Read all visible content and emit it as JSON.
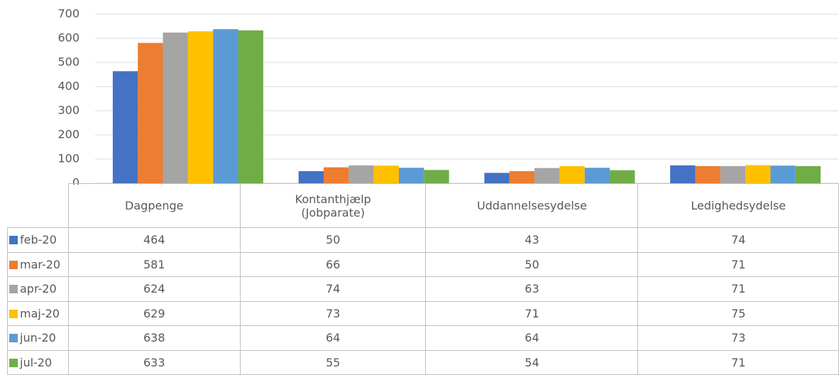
{
  "chart_data": {
    "type": "bar",
    "categories": [
      "Dagpenge",
      "Kontanthjælp (Jobparate)",
      "Uddannelsesydelse",
      "Ledighedsydelse"
    ],
    "series": [
      {
        "name": "feb-20",
        "color": "#4472c4",
        "values": [
          464,
          50,
          43,
          74
        ]
      },
      {
        "name": "mar-20",
        "color": "#ed7d31",
        "values": [
          581,
          66,
          50,
          71
        ]
      },
      {
        "name": "apr-20",
        "color": "#a5a5a5",
        "values": [
          624,
          74,
          63,
          71
        ]
      },
      {
        "name": "maj-20",
        "color": "#ffc000",
        "values": [
          629,
          73,
          71,
          75
        ]
      },
      {
        "name": "jun-20",
        "color": "#5b9bd5",
        "values": [
          638,
          64,
          64,
          73
        ]
      },
      {
        "name": "jul-20",
        "color": "#70ad47",
        "values": [
          633,
          55,
          54,
          71
        ]
      }
    ],
    "ylim": [
      0,
      700
    ],
    "yticks": [
      0,
      100,
      200,
      300,
      400,
      500,
      600,
      700
    ],
    "grid": true
  }
}
